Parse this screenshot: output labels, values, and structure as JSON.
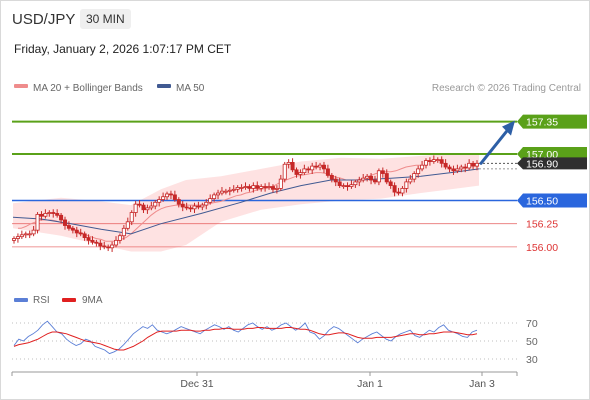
{
  "header": {
    "symbol": "USD/JPY",
    "timeframe": "30 MIN",
    "datetime": "Friday, January 2, 2026 1:07:17 PM CET"
  },
  "legend": {
    "ma20_label": "MA 20 + Bollinger Bands",
    "ma50_label": "MA 50",
    "credit": "Research © 2026 Trading Central",
    "rsi_label": "RSI",
    "ma9_label": "9MA"
  },
  "colors": {
    "resistance": "#5aa119",
    "support": "#2a66dd",
    "support_light": "#e45050",
    "ma20": "#ef8c8c",
    "ma50": "#415a92",
    "bands": "#fdd8d8",
    "candle": "#c62828",
    "arrow": "#2d5fa6",
    "rsi": "#5b7fd6",
    "rsi_ma": "#e02020",
    "last_price_bg": "#303030"
  },
  "chart_data": [
    {
      "type": "candlestick",
      "x_ticks": [
        "Dec 31",
        "Jan 1",
        "Jan 3"
      ],
      "ylim": [
        155.74,
        157.55
      ],
      "levels": [
        {
          "value": 157.35,
          "label": "157.35",
          "kind": "resistance"
        },
        {
          "value": 157.0,
          "label": "157.00",
          "kind": "resistance"
        },
        {
          "value": 156.9,
          "label": "156.90",
          "kind": "last"
        },
        {
          "value": 156.5,
          "label": "156.50",
          "kind": "support-strong"
        },
        {
          "value": 156.25,
          "label": "156.25",
          "kind": "support"
        },
        {
          "value": 156.0,
          "label": "156.00",
          "kind": "support"
        }
      ],
      "close": [
        156.09,
        156.11,
        156.13,
        156.14,
        156.14,
        156.18,
        156.35,
        156.33,
        156.36,
        156.37,
        156.36,
        156.34,
        156.29,
        156.23,
        156.2,
        156.18,
        156.15,
        156.14,
        156.1,
        156.07,
        156.05,
        156.04,
        156.01,
        156.0,
        155.99,
        156.02,
        156.07,
        156.12,
        156.2,
        156.27,
        156.37,
        156.46,
        156.45,
        156.4,
        156.42,
        156.44,
        156.48,
        156.51,
        156.54,
        156.57,
        156.56,
        156.51,
        156.46,
        156.43,
        156.42,
        156.41,
        156.44,
        156.43,
        156.45,
        156.48,
        156.52,
        156.56,
        156.58,
        156.6,
        156.6,
        156.61,
        156.62,
        156.64,
        156.64,
        156.65,
        156.63,
        156.66,
        156.63,
        156.65,
        156.64,
        156.65,
        156.62,
        156.63,
        156.73,
        156.89,
        156.91,
        156.83,
        156.78,
        156.8,
        156.84,
        156.83,
        156.87,
        156.86,
        156.88,
        156.84,
        156.77,
        156.73,
        156.7,
        156.66,
        156.66,
        156.65,
        156.67,
        156.7,
        156.72,
        156.74,
        156.76,
        156.72,
        156.7,
        156.82,
        156.79,
        156.7,
        156.66,
        156.59,
        156.58,
        156.63,
        156.7,
        156.73,
        156.79,
        156.84,
        156.88,
        156.93,
        156.92,
        156.94,
        156.94,
        156.9,
        156.86,
        156.84,
        156.82,
        156.84,
        156.86,
        156.85,
        156.9,
        156.87,
        156.9
      ],
      "ma20": [
        156.2,
        156.2,
        156.22,
        156.25,
        156.27,
        156.29,
        156.29,
        156.29,
        156.28,
        156.26,
        156.24,
        156.21,
        156.18,
        156.15,
        156.13,
        156.11,
        156.09,
        156.08,
        156.06,
        156.06,
        156.06,
        156.08,
        156.1,
        156.14,
        156.19,
        156.24,
        156.29,
        156.34,
        156.38,
        156.41,
        156.43,
        156.44,
        156.45,
        156.45,
        156.45,
        156.45,
        156.45,
        156.45,
        156.46,
        156.47,
        156.48,
        156.49,
        156.51,
        156.53,
        156.55,
        156.56,
        156.58,
        156.59,
        156.61,
        156.62,
        156.63,
        156.64,
        156.67,
        156.7,
        156.72,
        156.74,
        156.76,
        156.77,
        156.78,
        156.79,
        156.8,
        156.8,
        156.79,
        156.77,
        156.75,
        156.74,
        156.72,
        156.72,
        156.72,
        156.73,
        156.75,
        156.77,
        156.79,
        156.8,
        156.81,
        156.81,
        156.82,
        156.84,
        156.86,
        156.87,
        156.88,
        156.88
      ],
      "ma20_x": [
        17,
        20,
        25,
        30,
        35,
        40,
        45,
        50,
        55,
        60,
        65,
        70,
        75,
        80,
        85,
        90,
        95,
        100,
        105,
        110,
        115,
        120,
        125,
        130,
        135,
        140,
        145,
        150,
        155,
        160,
        165,
        170,
        175,
        180,
        185,
        190,
        195,
        200,
        205,
        210,
        215,
        220,
        225,
        230,
        235,
        240,
        245,
        250,
        255,
        260,
        265,
        270,
        275,
        280,
        285,
        290,
        295,
        300,
        305,
        310,
        315,
        320,
        325,
        330,
        335,
        340,
        345,
        350,
        355,
        360,
        365,
        370,
        375,
        380,
        385,
        390,
        395,
        400,
        405,
        410,
        415,
        420
      ],
      "ma50_pts": [
        [
          12,
          156.32
        ],
        [
          40,
          156.3
        ],
        [
          70,
          156.25
        ],
        [
          100,
          156.19
        ],
        [
          130,
          156.14
        ],
        [
          160,
          156.25
        ],
        [
          200,
          156.36
        ],
        [
          240,
          156.48
        ],
        [
          270,
          156.58
        ],
        [
          300,
          156.66
        ],
        [
          330,
          156.72
        ],
        [
          360,
          156.72
        ],
        [
          390,
          156.74
        ],
        [
          420,
          156.76
        ],
        [
          450,
          156.8
        ],
        [
          478,
          156.84
        ]
      ],
      "bb_upper_pts": [
        [
          12,
          156.47
        ],
        [
          60,
          156.53
        ],
        [
          100,
          156.49
        ],
        [
          130,
          156.45
        ],
        [
          160,
          156.62
        ],
        [
          185,
          156.72
        ],
        [
          220,
          156.76
        ],
        [
          260,
          156.84
        ],
        [
          300,
          156.92
        ],
        [
          340,
          156.96
        ],
        [
          380,
          156.95
        ],
        [
          420,
          156.98
        ],
        [
          450,
          157.0
        ],
        [
          478,
          157.01
        ]
      ],
      "bb_lower_pts": [
        [
          478,
          156.66
        ],
        [
          450,
          156.62
        ],
        [
          420,
          156.58
        ],
        [
          380,
          156.52
        ],
        [
          340,
          156.5
        ],
        [
          300,
          156.46
        ],
        [
          260,
          156.4
        ],
        [
          220,
          156.27
        ],
        [
          185,
          156.02
        ],
        [
          160,
          155.95
        ],
        [
          130,
          155.95
        ],
        [
          100,
          156.02
        ],
        [
          60,
          156.12
        ],
        [
          12,
          156.2
        ]
      ],
      "forecast_arrow": {
        "from": 156.9,
        "to": 157.35
      }
    },
    {
      "type": "line",
      "title": "RSI",
      "ylim": [
        20,
        80
      ],
      "y_ticks": [
        70,
        50,
        30
      ],
      "rsi": [
        45,
        52,
        50,
        55,
        58,
        62,
        68,
        72,
        66,
        60,
        58,
        52,
        48,
        45,
        47,
        52,
        50,
        44,
        42,
        40,
        36,
        38,
        41,
        46,
        52,
        58,
        62,
        66,
        64,
        68,
        62,
        60,
        58,
        60,
        63,
        66,
        64,
        62,
        60,
        58,
        62,
        65,
        68,
        66,
        63,
        66,
        62,
        60,
        64,
        68,
        70,
        66,
        63,
        66,
        62,
        64,
        68,
        70,
        66,
        62,
        65,
        70,
        60,
        58,
        52,
        56,
        62,
        66,
        64,
        60,
        56,
        52,
        48,
        52,
        55,
        58,
        60,
        56,
        52,
        50,
        55,
        58,
        60,
        62,
        56,
        54,
        58,
        62,
        60,
        65,
        68,
        62,
        60,
        58,
        55,
        54,
        60,
        62
      ],
      "ma9": [
        44,
        46,
        47,
        48,
        50,
        52,
        55,
        58,
        60,
        60,
        59,
        58,
        56,
        54,
        52,
        50,
        49,
        48,
        47,
        45,
        43,
        41,
        40,
        40,
        42,
        44,
        47,
        50,
        54,
        57,
        60,
        61,
        61,
        61,
        61,
        62,
        62,
        62,
        61,
        61,
        62,
        62,
        63,
        63,
        64,
        64,
        63,
        63,
        63,
        64,
        64,
        65,
        65,
        64,
        64,
        64,
        64,
        65,
        65,
        64,
        63,
        63,
        62,
        60,
        58,
        57,
        57,
        58,
        59,
        59,
        58,
        56,
        54,
        53,
        53,
        53,
        54,
        54,
        54,
        54,
        55,
        56,
        57,
        58,
        58,
        57,
        57,
        58,
        58,
        59,
        60,
        60,
        60,
        59,
        58,
        57,
        57,
        58
      ]
    }
  ]
}
